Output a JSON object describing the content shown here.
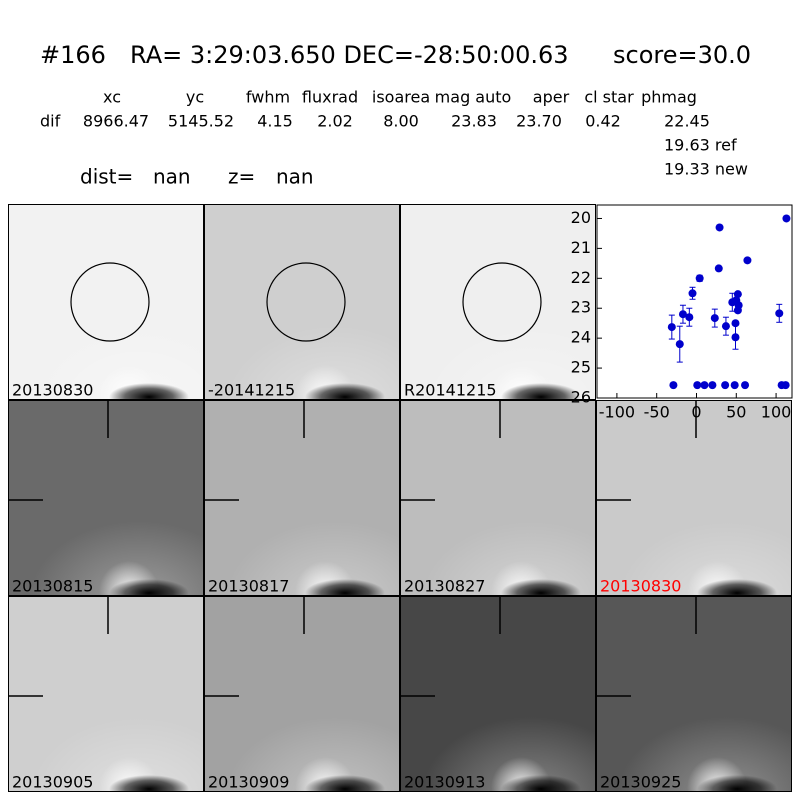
{
  "header": {
    "id": "#166",
    "coords": "RA= 3:29:03.650 DEC=-28:50:00.63",
    "score": "score=30.0"
  },
  "table": {
    "columns": [
      "xc",
      "yc",
      "fwhm",
      "fluxrad",
      "isoarea",
      "mag auto",
      "aper",
      "cl star",
      "phmag"
    ],
    "row_label": "dif",
    "values": [
      "8966.47",
      "5145.52",
      "4.15",
      "2.02",
      "8.00",
      "23.83",
      "23.70",
      "0.42",
      "22.45"
    ],
    "extra": [
      "19.63 ref",
      "19.33 new"
    ]
  },
  "dist": {
    "dist_label": "dist=",
    "dist": "nan",
    "z_label": "z=",
    "z": "nan"
  },
  "panels": [
    {
      "label": "20130830",
      "circle": true
    },
    {
      "label": "-20141215",
      "circle": true
    },
    {
      "label": "R20141215",
      "circle": true
    },
    {
      "label": "20130815",
      "cross": true
    },
    {
      "label": "20130817",
      "cross": true
    },
    {
      "label": "20130827",
      "cross": true
    },
    {
      "label": "20130830",
      "cross": true,
      "label_color": "#ff0000"
    },
    {
      "label": "20130905",
      "cross": true
    },
    {
      "label": "20130909",
      "cross": true
    },
    {
      "label": "20130913",
      "cross": true
    },
    {
      "label": "20130925",
      "cross": true
    }
  ],
  "chart_data": {
    "type": "scatter",
    "color": "#0000cc",
    "x": [
      -31,
      -29,
      -21,
      -17,
      -9,
      -5,
      4,
      1,
      10,
      20,
      23,
      29,
      28,
      36,
      37,
      45,
      48,
      49,
      49,
      50,
      52,
      53,
      52,
      61,
      64,
      104,
      107,
      112,
      113
    ],
    "y": [
      23.63,
      25.57,
      24.2,
      23.2,
      23.3,
      22.5,
      22.0,
      25.57,
      25.57,
      25.57,
      23.33,
      20.3,
      21.67,
      25.57,
      23.6,
      22.8,
      25.57,
      23.97,
      23.5,
      22.73,
      22.53,
      22.9,
      23.07,
      25.57,
      21.4,
      23.17,
      25.57,
      25.57,
      20.0
    ],
    "errors": [
      0.4,
      null,
      0.6,
      0.3,
      0.3,
      0.2,
      0.1,
      null,
      null,
      null,
      0.3,
      null,
      null,
      null,
      0.3,
      0.3,
      null,
      0.4,
      null,
      null,
      null,
      null,
      null,
      null,
      null,
      0.3,
      null,
      null,
      null
    ],
    "xlim": [
      -125,
      120
    ],
    "ylim": [
      19.55,
      26
    ],
    "y_inverted": true,
    "xticks": [
      -100,
      -50,
      0,
      50,
      100
    ],
    "yticks": [
      20,
      21,
      22,
      23,
      24,
      25,
      26
    ]
  }
}
